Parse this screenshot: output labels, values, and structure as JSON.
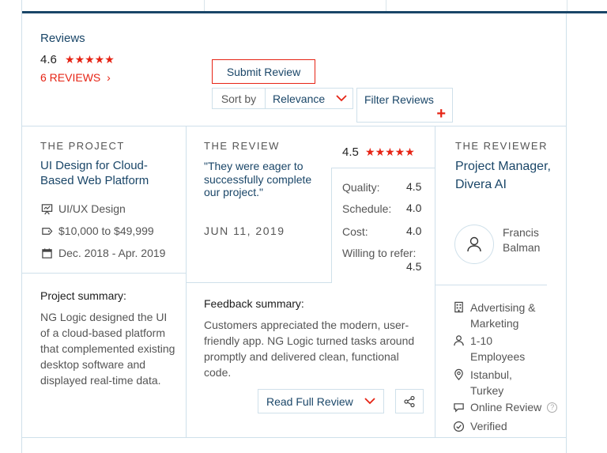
{
  "header": {
    "reviews_title": "Reviews",
    "rating": "4.6",
    "stars": "★★★★★",
    "reviews_link": "6 REVIEWS",
    "reviews_link_chevron": "›",
    "submit_label": "Submit Review",
    "sort_label": "Sort by",
    "sort_value": "Relevance",
    "filter_label": "Filter Reviews",
    "filter_plus": "+"
  },
  "project": {
    "section_label": "THE PROJECT",
    "title": "UI Design for Cloud-Based Web Platform",
    "service": "UI/UX Design",
    "budget": "$10,000 to $49,999",
    "dates": "Dec. 2018 - Apr. 2019",
    "summary_heading": "Project summary:",
    "summary_text": "NG Logic designed the UI of a cloud-based platform that complemented existing desktop software and displayed real-time data."
  },
  "review": {
    "section_label": "THE REVIEW",
    "quote": "\"They were eager to successfully complete our project.\"",
    "date": "JUN 11, 2019",
    "overall": "4.5",
    "stars": "★★★★★",
    "scores": [
      {
        "label": "Quality:",
        "value": "4.5"
      },
      {
        "label": "Schedule:",
        "value": "4.0"
      },
      {
        "label": "Cost:",
        "value": "4.0"
      }
    ],
    "refer_label": "Willing to refer:",
    "refer_value": "4.5",
    "feedback_heading": "Feedback summary:",
    "feedback_text": "Customers appreciated the modern, user-friendly app. NG Logic turned tasks around promptly and delivered clean, functional code.",
    "read_full_label": "Read Full Review"
  },
  "reviewer": {
    "section_label": "THE REVIEWER",
    "role": "Project Manager, Divera AI",
    "name_first": "Francis",
    "name_last": "Balman",
    "industry": "Advertising & Marketing",
    "employees": "1-10 Employees",
    "location": "Istanbul, Turkey",
    "review_type": "Online Review",
    "verified": "Verified"
  },
  "colors": {
    "accent_red": "#e62415",
    "navy": "#1a4668",
    "border": "#cfe0ea"
  }
}
